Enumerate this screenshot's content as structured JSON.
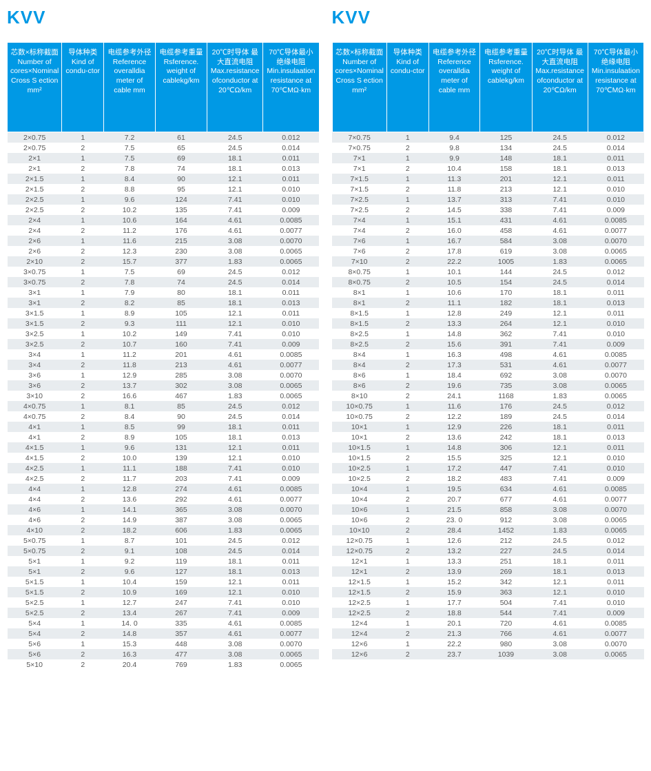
{
  "title": "KVV",
  "headers": [
    "芯数×标称截面\nNumber of cores×Nominal Cross S ection mm²",
    "导体种类\nKind of condu-ctor",
    "电缆参考外径\nReference overalldia meter of cable mm",
    "电缆参考重量\nRsference. weight of cablekg/km",
    "20℃时导体 最大直流电阻\nMax.resistance ofconductor at 20℃Ω/km",
    "70℃导体最小绝缘电阻\nMin.insulaation resistance at 70℃MΩ·km"
  ],
  "left_rows": [
    [
      "2×0.75",
      "1",
      "7.2",
      "61",
      "24.5",
      "0.012"
    ],
    [
      "2×0.75",
      "2",
      "7.5",
      "65",
      "24.5",
      "0.014"
    ],
    [
      "2×1",
      "1",
      "7.5",
      "69",
      "18.1",
      "0.011"
    ],
    [
      "2×1",
      "2",
      "7.8",
      "74",
      "18.1",
      "0.013"
    ],
    [
      "2×1.5",
      "1",
      "8.4",
      "90",
      "12.1",
      "0.011"
    ],
    [
      "2×1.5",
      "2",
      "8.8",
      "95",
      "12.1",
      "0.010"
    ],
    [
      "2×2.5",
      "1",
      "9.6",
      "124",
      "7.41",
      "0.010"
    ],
    [
      "2×2.5",
      "2",
      "10.2",
      "135",
      "7.41",
      "0.009"
    ],
    [
      "2×4",
      "1",
      "10.6",
      "164",
      "4.61",
      "0.0085"
    ],
    [
      "2×4",
      "2",
      "11.2",
      "176",
      "4.61",
      "0.0077"
    ],
    [
      "2×6",
      "1",
      "11.6",
      "215",
      "3.08",
      "0.0070"
    ],
    [
      "2×6",
      "2",
      "12.3",
      "230",
      "3.08",
      "0.0065"
    ],
    [
      "2×10",
      "2",
      "15.7",
      "377",
      "1.83",
      "0.0065"
    ],
    [
      "3×0.75",
      "1",
      "7.5",
      "69",
      "24.5",
      "0.012"
    ],
    [
      "3×0.75",
      "2",
      "7.8",
      "74",
      "24.5",
      "0.014"
    ],
    [
      "3×1",
      "1",
      "7.9",
      "80",
      "18.1",
      "0.011"
    ],
    [
      "3×1",
      "2",
      "8.2",
      "85",
      "18.1",
      "0.013"
    ],
    [
      "3×1.5",
      "1",
      "8.9",
      "105",
      "12.1",
      "0.011"
    ],
    [
      "3×1.5",
      "2",
      "9.3",
      "111",
      "12.1",
      "0.010"
    ],
    [
      "3×2.5",
      "1",
      "10.2",
      "149",
      "7.41",
      "0.010"
    ],
    [
      "3×2.5",
      "2",
      "10.7",
      "160",
      "7.41",
      "0.009"
    ],
    [
      "3×4",
      "1",
      "11.2",
      "201",
      "4.61",
      "0.0085"
    ],
    [
      "3×4",
      "2",
      "11.8",
      "213",
      "4.61",
      "0.0077"
    ],
    [
      "3×6",
      "1",
      "12.9",
      "285",
      "3.08",
      "0.0070"
    ],
    [
      "3×6",
      "2",
      "13.7",
      "302",
      "3.08",
      "0.0065"
    ],
    [
      "3×10",
      "2",
      "16.6",
      "467",
      "1.83",
      "0.0065"
    ],
    [
      "4×0.75",
      "1",
      "8.1",
      "85",
      "24.5",
      "0.012"
    ],
    [
      "4×0.75",
      "2",
      "8.4",
      "90",
      "24.5",
      "0.014"
    ],
    [
      "4×1",
      "1",
      "8.5",
      "99",
      "18.1",
      "0.011"
    ],
    [
      "4×1",
      "2",
      "8.9",
      "105",
      "18.1",
      "0.013"
    ],
    [
      "4×1.5",
      "1",
      "9.6",
      "131",
      "12.1",
      "0.011"
    ],
    [
      "4×1.5",
      "2",
      "10.0",
      "139",
      "12.1",
      "0.010"
    ],
    [
      "4×2.5",
      "1",
      "11.1",
      "188",
      "7.41",
      "0.010"
    ],
    [
      "4×2.5",
      "2",
      "11.7",
      "203",
      "7.41",
      "0.009"
    ],
    [
      "4×4",
      "1",
      "12.8",
      "274",
      "4.61",
      "0.0085"
    ],
    [
      "4×4",
      "2",
      "13.6",
      "292",
      "4.61",
      "0.0077"
    ],
    [
      "4×6",
      "1",
      "14.1",
      "365",
      "3.08",
      "0.0070"
    ],
    [
      "4×6",
      "2",
      "14.9",
      "387",
      "3.08",
      "0.0065"
    ],
    [
      "4×10",
      "2",
      "18.2",
      "606",
      "1.83",
      "0.0065"
    ],
    [
      "5×0.75",
      "1",
      "8.7",
      "101",
      "24.5",
      "0.012"
    ],
    [
      "5×0.75",
      "2",
      "9.1",
      "108",
      "24.5",
      "0.014"
    ],
    [
      "5×1",
      "1",
      "9.2",
      "119",
      "18.1",
      "0.011"
    ],
    [
      "5×1",
      "2",
      "9.6",
      "127",
      "18.1",
      "0.013"
    ],
    [
      "5×1.5",
      "1",
      "10.4",
      "159",
      "12.1",
      "0.011"
    ],
    [
      "5×1.5",
      "2",
      "10.9",
      "169",
      "12.1",
      "0.010"
    ],
    [
      "5×2.5",
      "1",
      "12.7",
      "247",
      "7.41",
      "0.010"
    ],
    [
      "5×2.5",
      "2",
      "13.4",
      "267",
      "7.41",
      "0.009"
    ],
    [
      "5×4",
      "1",
      "14. 0",
      "335",
      "4.61",
      "0.0085"
    ],
    [
      "5×4",
      "2",
      "14.8",
      "357",
      "4.61",
      "0.0077"
    ],
    [
      "5×6",
      "1",
      "15.3",
      "448",
      "3.08",
      "0.0070"
    ],
    [
      "5×6",
      "2",
      "16.3",
      "477",
      "3.08",
      "0.0065"
    ],
    [
      "5×10",
      "2",
      "20.4",
      "769",
      "1.83",
      "0.0065"
    ]
  ],
  "right_rows": [
    [
      "7×0.75",
      "1",
      "9.4",
      "125",
      "24.5",
      "0.012"
    ],
    [
      "7×0.75",
      "2",
      "9.8",
      "134",
      "24.5",
      "0.014"
    ],
    [
      "7×1",
      "1",
      "9.9",
      "148",
      "18.1",
      "0.011"
    ],
    [
      "7×1",
      "2",
      "10.4",
      "158",
      "18.1",
      "0.013"
    ],
    [
      "7×1.5",
      "1",
      "11.3",
      "201",
      "12.1",
      "0.011"
    ],
    [
      "7×1.5",
      "2",
      "11.8",
      "213",
      "12.1",
      "0.010"
    ],
    [
      "7×2.5",
      "1",
      "13.7",
      "313",
      "7.41",
      "0.010"
    ],
    [
      "7×2.5",
      "2",
      "14.5",
      "338",
      "7.41",
      "0.009"
    ],
    [
      "7×4",
      "1",
      "15.1",
      "431",
      "4.61",
      "0.0085"
    ],
    [
      "7×4",
      "2",
      "16.0",
      "458",
      "4.61",
      "0.0077"
    ],
    [
      "7×6",
      "1",
      "16.7",
      "584",
      "3.08",
      "0.0070"
    ],
    [
      "7×6",
      "2",
      "17.8",
      "619",
      "3.08",
      "0.0065"
    ],
    [
      "7×10",
      "2",
      "22.2",
      "1005",
      "1.83",
      "0.0065"
    ],
    [
      "8×0.75",
      "1",
      "10.1",
      "144",
      "24.5",
      "0.012"
    ],
    [
      "8×0.75",
      "2",
      "10.5",
      "154",
      "24.5",
      "0.014"
    ],
    [
      "8×1",
      "1",
      "10.6",
      "170",
      "18.1",
      "0.011"
    ],
    [
      "8×1",
      "2",
      "11.1",
      "182",
      "18.1",
      "0.013"
    ],
    [
      "8×1.5",
      "1",
      "12.8",
      "249",
      "12.1",
      "0.011"
    ],
    [
      "8×1.5",
      "2",
      "13.3",
      "264",
      "12.1",
      "0.010"
    ],
    [
      "8×2.5",
      "1",
      "14.8",
      "362",
      "7.41",
      "0.010"
    ],
    [
      "8×2.5",
      "2",
      "15.6",
      "391",
      "7.41",
      "0.009"
    ],
    [
      "8×4",
      "1",
      "16.3",
      "498",
      "4.61",
      "0.0085"
    ],
    [
      "8×4",
      "2",
      "17.3",
      "531",
      "4.61",
      "0.0077"
    ],
    [
      "8×6",
      "1",
      "18.4",
      "692",
      "3.08",
      "0.0070"
    ],
    [
      "8×6",
      "2",
      "19.6",
      "735",
      "3.08",
      "0.0065"
    ],
    [
      "8×10",
      "2",
      "24.1",
      "1168",
      "1.83",
      "0.0065"
    ],
    [
      "10×0.75",
      "1",
      "11.6",
      "176",
      "24.5",
      "0.012"
    ],
    [
      "10×0.75",
      "2",
      "12.2",
      "189",
      "24.5",
      "0.014"
    ],
    [
      "10×1",
      "1",
      "12.9",
      "226",
      "18.1",
      "0.011"
    ],
    [
      "10×1",
      "2",
      "13.6",
      "242",
      "18.1",
      "0.013"
    ],
    [
      "10×1.5",
      "1",
      "14.8",
      "306",
      "12.1",
      "0.011"
    ],
    [
      "10×1.5",
      "2",
      "15.5",
      "325",
      "12.1",
      "0.010"
    ],
    [
      "10×2.5",
      "1",
      "17.2",
      "447",
      "7.41",
      "0.010"
    ],
    [
      "10×2.5",
      "2",
      "18.2",
      "483",
      "7.41",
      "0.009"
    ],
    [
      "10×4",
      "1",
      "19.5",
      "634",
      "4.61",
      "0.0085"
    ],
    [
      "10×4",
      "2",
      "20.7",
      "677",
      "4.61",
      "0.0077"
    ],
    [
      "10×6",
      "1",
      "21.5",
      "858",
      "3.08",
      "0.0070"
    ],
    [
      "10×6",
      "2",
      "23. 0",
      "912",
      "3.08",
      "0.0065"
    ],
    [
      "10×10",
      "2",
      "28.4",
      "1452",
      "1.83",
      "0.0065"
    ],
    [
      "12×0.75",
      "1",
      "12.6",
      "212",
      "24.5",
      "0.012"
    ],
    [
      "12×0.75",
      "2",
      "13.2",
      "227",
      "24.5",
      "0.014"
    ],
    [
      "12×1",
      "1",
      "13.3",
      "251",
      "18.1",
      "0.011"
    ],
    [
      "12×1",
      "2",
      "13.9",
      "269",
      "18.1",
      "0.013"
    ],
    [
      "12×1.5",
      "1",
      "15.2",
      "342",
      "12.1",
      "0.011"
    ],
    [
      "12×1.5",
      "2",
      "15.9",
      "363",
      "12.1",
      "0.010"
    ],
    [
      "12×2.5",
      "1",
      "17.7",
      "504",
      "7.41",
      "0.010"
    ],
    [
      "12×2.5",
      "2",
      "18.8",
      "544",
      "7.41",
      "0.009"
    ],
    [
      "12×4",
      "1",
      "20.1",
      "720",
      "4.61",
      "0.0085"
    ],
    [
      "12×4",
      "2",
      "21.3",
      "766",
      "4.61",
      "0.0077"
    ],
    [
      "12×6",
      "1",
      "22.2",
      "980",
      "3.08",
      "0.0070"
    ],
    [
      "12×6",
      "2",
      "23.7",
      "1039",
      "3.08",
      "0.0065"
    ]
  ]
}
